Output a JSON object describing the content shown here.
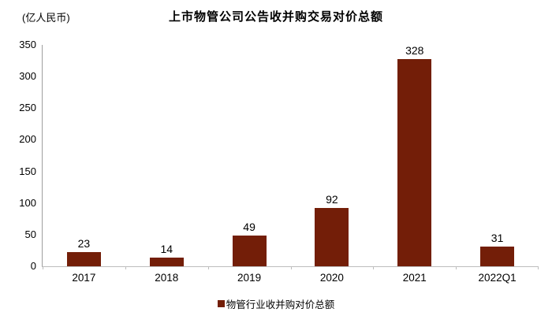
{
  "chart_data": {
    "type": "bar",
    "title": "上市物管公司公告收并购交易对价总额",
    "ylabel": "(亿人民币)",
    "xlabel": "",
    "categories": [
      "2017",
      "2018",
      "2019",
      "2020",
      "2021",
      "2022Q1"
    ],
    "series": [
      {
        "name": "物管行业收并购对价总额",
        "values": [
          23,
          14,
          49,
          92,
          328,
          31
        ]
      }
    ],
    "ylim": [
      0,
      350
    ],
    "ytick_step": 50,
    "yticks": [
      0,
      50,
      100,
      150,
      200,
      250,
      300,
      350
    ],
    "grid": false,
    "legend_position": "bottom",
    "colors": {
      "bar": "#731e08",
      "y_axis_line": "#9e9e9e",
      "x_axis_line": "#bdbdbd",
      "text": "#000000"
    }
  }
}
